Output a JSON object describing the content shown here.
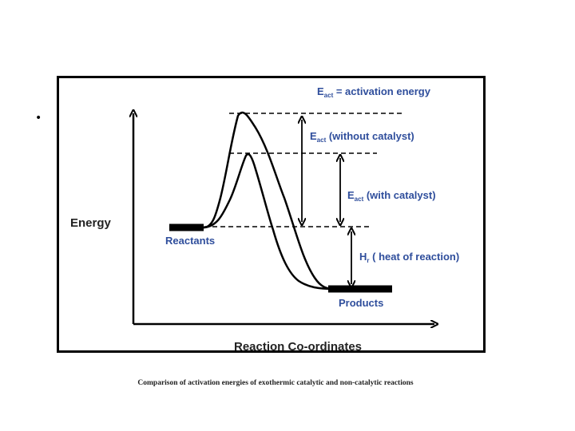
{
  "slide": {
    "bullet": "•",
    "caption": "Comparison of activation energies of exothermic catalytic and non-catalytic reactions"
  },
  "diagram": {
    "legend_main": "E",
    "legend_sub": "act",
    "legend_rest": " = activation energy",
    "y_axis_label": "Energy",
    "x_axis_label": "Reaction Co-ordinates",
    "reactants_label": "Reactants",
    "products_label": "Products",
    "without_catalyst": {
      "main": "E",
      "sub": "act",
      "rest": " (without catalyst)"
    },
    "with_catalyst": {
      "main": "E",
      "sub": "act",
      "rest": " (with catalyst)"
    },
    "heat_of_reaction": {
      "main": "H",
      "sub": "r",
      "rest": " ( heat of reaction)"
    }
  },
  "colors": {
    "label_blue": "#2f4e9c",
    "line": "#000000"
  }
}
